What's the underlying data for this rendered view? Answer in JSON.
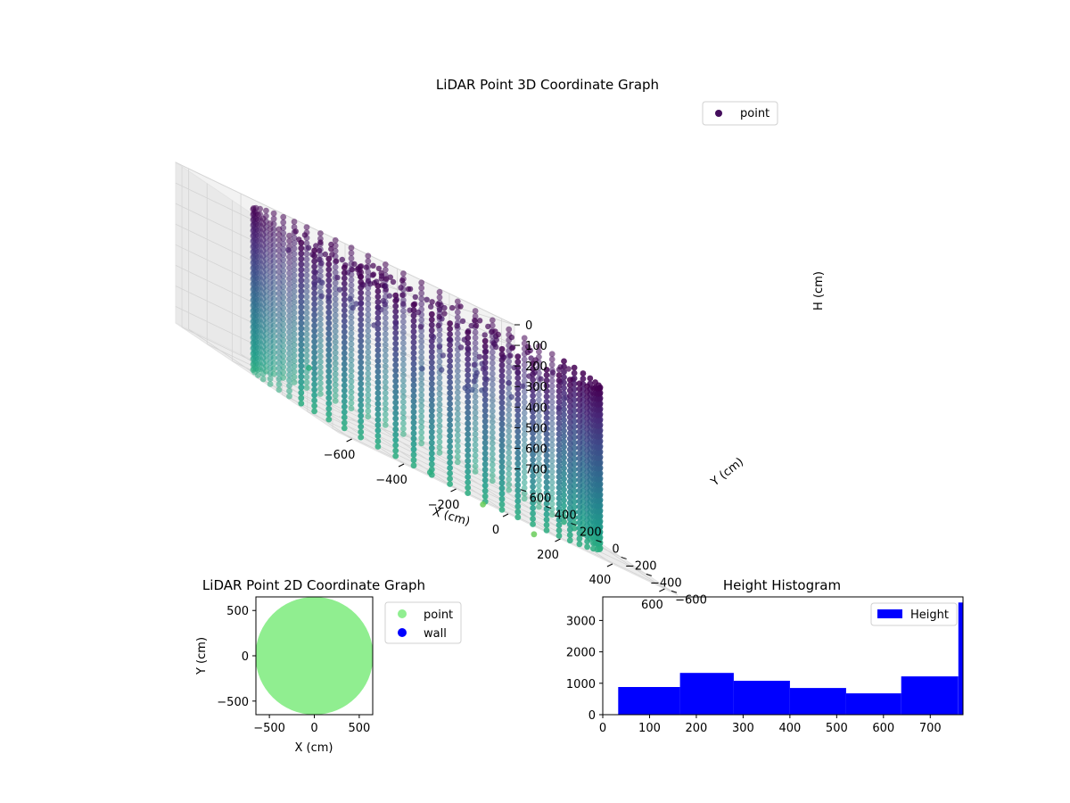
{
  "figure": {
    "background": "#ffffff"
  },
  "chart_data": [
    {
      "type": "scatter",
      "projection": "3d",
      "title": "LiDAR Point 3D Coordinate Graph",
      "xlabel": "X (cm)",
      "ylabel": "Y (cm)",
      "zlabel": "H (cm)",
      "xticks": [
        "−600",
        "−400",
        "−200",
        "0",
        "200",
        "400",
        "600"
      ],
      "yticks": [
        "−600",
        "−400",
        "−200",
        "0",
        "200",
        "400",
        "600"
      ],
      "zticks": [
        "0",
        "100",
        "200",
        "300",
        "400",
        "500",
        "600",
        "700"
      ],
      "xlim": [
        -650,
        650
      ],
      "ylim": [
        -650,
        650
      ],
      "zlim": [
        0,
        780
      ],
      "z_inverted": true,
      "legend": {
        "entries": [
          "point"
        ],
        "placement": "top-right"
      },
      "colormap": "viridis",
      "description_of_data": "ring of vertical point columns along a circular wall of radius ~600 cm spanning heights 0–780 cm, with interior scatter near the top",
      "wall_radius": 600,
      "n_columns": 60,
      "grid": true
    },
    {
      "type": "scatter",
      "title": "LiDAR Point 2D Coordinate Graph",
      "xlabel": "X (cm)",
      "ylabel": "Y (cm)",
      "xticks": [
        "−500",
        "0",
        "500"
      ],
      "yticks": [
        "−500",
        "0",
        "500"
      ],
      "xlim": [
        -650,
        650
      ],
      "ylim": [
        -650,
        650
      ],
      "legend": {
        "entries": [
          "point",
          "wall"
        ],
        "placement": "outside-right"
      },
      "series_colors": {
        "point": "#90ee90",
        "wall": "#0000ff"
      },
      "grid": false
    },
    {
      "type": "bar",
      "subtype": "histogram",
      "title": "Height Histogram",
      "legend": {
        "entries": [
          "Height"
        ],
        "placement": "top-right"
      },
      "color": "#0000ff",
      "xticks": [
        "0",
        "100",
        "200",
        "300",
        "400",
        "500",
        "600",
        "700"
      ],
      "yticks": [
        "0",
        "1000",
        "2000",
        "3000"
      ],
      "xlim": [
        0,
        770
      ],
      "ylim": [
        0,
        3750
      ],
      "bins": [
        {
          "x0": 33,
          "x1": 165,
          "count": 880
        },
        {
          "x0": 165,
          "x1": 280,
          "count": 1330
        },
        {
          "x0": 280,
          "x1": 400,
          "count": 1080
        },
        {
          "x0": 400,
          "x1": 520,
          "count": 850
        },
        {
          "x0": 520,
          "x1": 638,
          "count": 680
        },
        {
          "x0": 638,
          "x1": 760,
          "count": 1220
        },
        {
          "x0": 760,
          "x1": 770,
          "count": 3570
        }
      ],
      "grid": false
    }
  ]
}
